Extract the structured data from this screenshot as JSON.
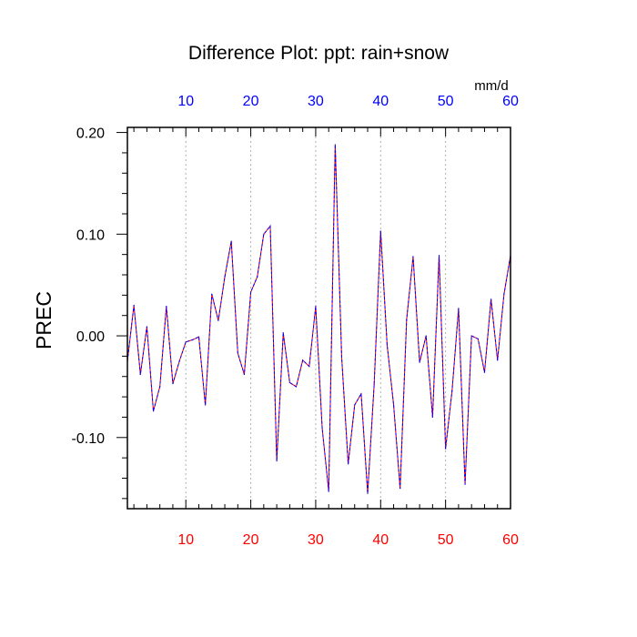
{
  "chart_data": {
    "type": "line",
    "title": "Difference Plot: ppt: rain+snow",
    "ylabel": "PREC",
    "top_axis_units": "mm/d",
    "xlim": [
      1,
      60
    ],
    "ylim": [
      -0.17,
      0.205
    ],
    "x_ticks": [
      10,
      20,
      30,
      40,
      50,
      60
    ],
    "x_tick_labels": [
      "10",
      "20",
      "30",
      "40",
      "50",
      "60"
    ],
    "y_ticks": [
      0.2,
      0.1,
      0.0,
      -0.1
    ],
    "y_tick_labels": [
      "0.20",
      "0.10",
      "0.00",
      "-0.10"
    ],
    "y_minor_step": 0.02,
    "x_minor_step": 2,
    "grid": {
      "vertical": true,
      "horizontal": false
    },
    "colors": {
      "bottom_tick_labels": "#ff0000",
      "top_tick_labels": "#0000ff",
      "line_primary": "#0000ff",
      "line_secondary": "#ff0000",
      "grid": "#b0b0b0",
      "axis": "#000000"
    },
    "series": [
      {
        "x": [
          1,
          2,
          3,
          4,
          5,
          6,
          7,
          8,
          9,
          10,
          11,
          12,
          13,
          14,
          15,
          16,
          17,
          18,
          19,
          20,
          21,
          22,
          23,
          24,
          25,
          26,
          27,
          28,
          29,
          30,
          31,
          32,
          33,
          34,
          35,
          36,
          37,
          38,
          39,
          40,
          41,
          42,
          43,
          44,
          45,
          46,
          47,
          48,
          49,
          50,
          51,
          52,
          53,
          54,
          55,
          56,
          57,
          58,
          59,
          60
        ],
        "values": [
          -0.025,
          0.03,
          -0.038,
          0.009,
          -0.074,
          -0.05,
          0.029,
          -0.047,
          -0.025,
          -0.006,
          -0.004,
          -0.001,
          -0.068,
          0.041,
          0.015,
          0.058,
          0.093,
          -0.017,
          -0.038,
          0.043,
          0.058,
          0.1,
          0.108,
          -0.123,
          0.003,
          -0.046,
          -0.05,
          -0.024,
          -0.03,
          0.029,
          -0.091,
          -0.153,
          0.188,
          -0.021,
          -0.126,
          -0.068,
          -0.057,
          -0.155,
          -0.048,
          0.103,
          -0.009,
          -0.068,
          -0.15,
          0.016,
          0.078,
          -0.026,
          0.0,
          -0.08,
          0.079,
          -0.111,
          -0.054,
          0.027,
          -0.146,
          0.0,
          -0.003,
          -0.036,
          0.036,
          -0.024,
          0.041,
          0.079
        ]
      }
    ]
  }
}
